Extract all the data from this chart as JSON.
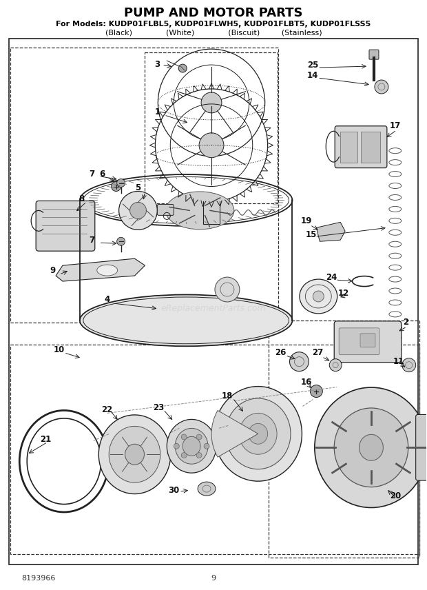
{
  "title": "PUMP AND MOTOR PARTS",
  "subtitle1": "For Models: KUDP01FLBL5, KUDP01FLWH5, KUDP01FLBT5, KUDP01FLSS5",
  "subtitle2": "(Black)              (White)              (Biscuit)         (Stainless)",
  "page_num": "9",
  "doc_num": "8193966",
  "watermark": "eReplacementParts.com",
  "bg_color": "#ffffff",
  "lc": "#222222",
  "title_fontsize": 13,
  "sub1_fontsize": 8,
  "sub2_fontsize": 8,
  "label_fontsize": 8.5
}
